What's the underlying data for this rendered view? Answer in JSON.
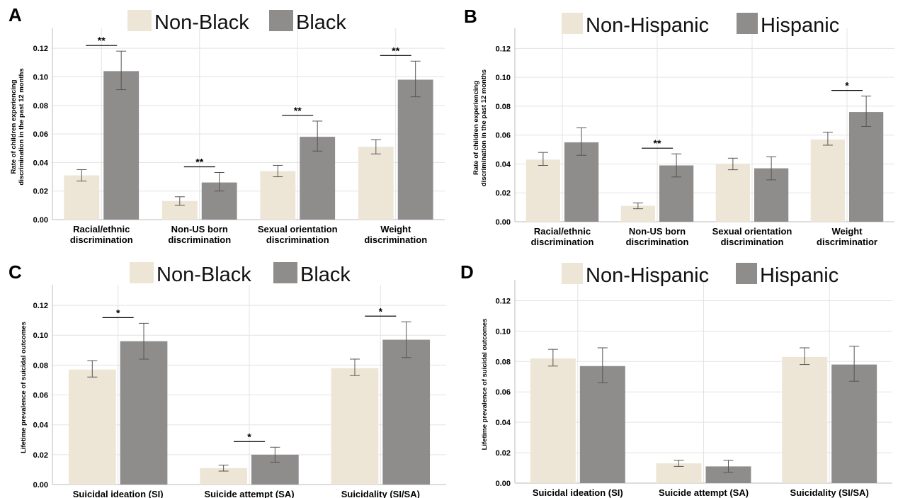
{
  "colors": {
    "group1": "#ede6d6",
    "group2": "#8f8c8c",
    "grid": "#e3e3e3",
    "errorbar": "#555555"
  },
  "chart_data": [
    {
      "panel": "A",
      "type": "bar",
      "ylabel": [
        "Rate of children experiencing",
        "discrimination in the past 12 months"
      ],
      "ylim": [
        0,
        0.13
      ],
      "yticks": [
        "0.00",
        "0.02",
        "0.04",
        "0.06",
        "0.08",
        "0.10",
        "0.12"
      ],
      "categories": [
        [
          "Racial/ethnic",
          "discrimination"
        ],
        [
          "Non-US born",
          "discrimination"
        ],
        [
          "Sexual orientation",
          "discrimination"
        ],
        [
          "Weight",
          "discrimination"
        ]
      ],
      "series": [
        {
          "name": "Non-Black",
          "values": [
            0.031,
            0.013,
            0.034,
            0.051
          ],
          "ci_low": [
            0.027,
            0.01,
            0.03,
            0.046
          ],
          "ci_high": [
            0.035,
            0.016,
            0.038,
            0.056
          ]
        },
        {
          "name": "Black",
          "values": [
            0.104,
            0.026,
            0.058,
            0.098
          ],
          "ci_low": [
            0.091,
            0.02,
            0.048,
            0.086
          ],
          "ci_high": [
            0.118,
            0.033,
            0.069,
            0.111
          ]
        }
      ],
      "significance": [
        "**",
        "**",
        "**",
        "**"
      ],
      "legend": "top"
    },
    {
      "panel": "B",
      "type": "bar",
      "ylabel": [
        "Rate of children experiencing",
        "discrimination in the past 12 months"
      ],
      "ylim": [
        0,
        0.13
      ],
      "yticks": [
        "0.00",
        "0.02",
        "0.04",
        "0.06",
        "0.08",
        "0.10",
        "0.12"
      ],
      "categories": [
        [
          "Racial/ethnic",
          "discrimination"
        ],
        [
          "Non-US born",
          "discrimination"
        ],
        [
          "Sexual orientation",
          "discrimination"
        ],
        [
          "Weight",
          "discriminatior"
        ]
      ],
      "series": [
        {
          "name": "Non-Hispanic",
          "values": [
            0.043,
            0.011,
            0.04,
            0.057
          ],
          "ci_low": [
            0.039,
            0.009,
            0.036,
            0.053
          ],
          "ci_high": [
            0.048,
            0.013,
            0.044,
            0.062
          ]
        },
        {
          "name": "Hispanic",
          "values": [
            0.055,
            0.039,
            0.037,
            0.076
          ],
          "ci_low": [
            0.046,
            0.031,
            0.029,
            0.066
          ],
          "ci_high": [
            0.065,
            0.047,
            0.045,
            0.087
          ]
        }
      ],
      "significance": [
        "",
        "**",
        "",
        "*"
      ],
      "legend": "top"
    },
    {
      "panel": "C",
      "type": "bar",
      "ylabel": [
        "Lifetime prevalence of suicidal outcomes"
      ],
      "ylim": [
        0,
        0.13
      ],
      "yticks": [
        "0.00",
        "0.02",
        "0.04",
        "0.06",
        "0.08",
        "0.10",
        "0.12"
      ],
      "categories": [
        [
          "Suicidal ideation (SI)"
        ],
        [
          "Suicide attempt (SA)"
        ],
        [
          "Suicidality (SI/SA)"
        ]
      ],
      "series": [
        {
          "name": "Non-Black",
          "values": [
            0.077,
            0.011,
            0.078
          ],
          "ci_low": [
            0.072,
            0.009,
            0.073
          ],
          "ci_high": [
            0.083,
            0.013,
            0.084
          ]
        },
        {
          "name": "Black",
          "values": [
            0.096,
            0.02,
            0.097
          ],
          "ci_low": [
            0.084,
            0.015,
            0.085
          ],
          "ci_high": [
            0.108,
            0.025,
            0.109
          ]
        }
      ],
      "significance": [
        "*",
        "*",
        "*"
      ],
      "legend": "top"
    },
    {
      "panel": "D",
      "type": "bar",
      "ylabel": [
        "Lifetime prevalence of suicidal outcomes"
      ],
      "ylim": [
        0,
        0.13
      ],
      "yticks": [
        "0.00",
        "0.02",
        "0.04",
        "0.06",
        "0.08",
        "0.10",
        "0.12"
      ],
      "categories": [
        [
          "Suicidal ideation (SI)"
        ],
        [
          "Suicide attempt (SA)"
        ],
        [
          "Suicidality (SI/SA)"
        ]
      ],
      "series": [
        {
          "name": "Non-Hispanic",
          "values": [
            0.082,
            0.013,
            0.083
          ],
          "ci_low": [
            0.077,
            0.011,
            0.078
          ],
          "ci_high": [
            0.088,
            0.015,
            0.089
          ]
        },
        {
          "name": "Hispanic",
          "values": [
            0.077,
            0.011,
            0.078
          ],
          "ci_low": [
            0.066,
            0.007,
            0.067
          ],
          "ci_high": [
            0.089,
            0.015,
            0.09
          ]
        }
      ],
      "significance": [
        "",
        "",
        ""
      ],
      "legend": "top"
    }
  ]
}
